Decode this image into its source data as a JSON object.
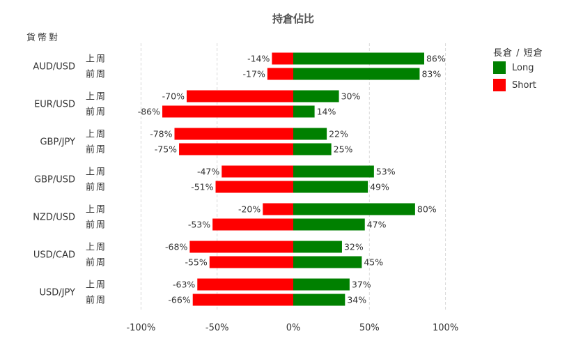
{
  "chart_data": {
    "type": "bar",
    "orientation": "horizontal-diverging",
    "title": "持倉佔比",
    "y_group_title": "貨幣對",
    "legend_title": "長倉 / 短倉",
    "legend_position": "right",
    "grid": true,
    "xlim": [
      -100,
      100
    ],
    "x_ticks": [
      {
        "value": -100,
        "label": "-100%"
      },
      {
        "value": -50,
        "label": "-50%"
      },
      {
        "value": 0,
        "label": "0%"
      },
      {
        "value": 50,
        "label": "50%"
      },
      {
        "value": 100,
        "label": "100%"
      }
    ],
    "period_labels": [
      "上周",
      "前周"
    ],
    "series": [
      {
        "name": "Long",
        "color": "#008000"
      },
      {
        "name": "Short",
        "color": "#ff0000"
      }
    ],
    "groups": [
      {
        "pair": "AUD/USD",
        "rows": [
          {
            "period": "上周",
            "long": 86,
            "short": -14,
            "long_label": "86%",
            "short_label": "-14%"
          },
          {
            "period": "前周",
            "long": 83,
            "short": -17,
            "long_label": "83%",
            "short_label": "-17%"
          }
        ]
      },
      {
        "pair": "EUR/USD",
        "rows": [
          {
            "period": "上周",
            "long": 30,
            "short": -70,
            "long_label": "30%",
            "short_label": "-70%"
          },
          {
            "period": "前周",
            "long": 14,
            "short": -86,
            "long_label": "14%",
            "short_label": "-86%"
          }
        ]
      },
      {
        "pair": "GBP/JPY",
        "rows": [
          {
            "period": "上周",
            "long": 22,
            "short": -78,
            "long_label": "22%",
            "short_label": "-78%"
          },
          {
            "period": "前周",
            "long": 25,
            "short": -75,
            "long_label": "25%",
            "short_label": "-75%"
          }
        ]
      },
      {
        "pair": "GBP/USD",
        "rows": [
          {
            "period": "上周",
            "long": 53,
            "short": -47,
            "long_label": "53%",
            "short_label": "-47%"
          },
          {
            "period": "前周",
            "long": 49,
            "short": -51,
            "long_label": "49%",
            "short_label": "-51%"
          }
        ]
      },
      {
        "pair": "NZD/USD",
        "rows": [
          {
            "period": "上周",
            "long": 80,
            "short": -20,
            "long_label": "80%",
            "short_label": "-20%"
          },
          {
            "period": "前周",
            "long": 47,
            "short": -53,
            "long_label": "47%",
            "short_label": "-53%"
          }
        ]
      },
      {
        "pair": "USD/CAD",
        "rows": [
          {
            "period": "上周",
            "long": 32,
            "short": -68,
            "long_label": "32%",
            "short_label": "-68%"
          },
          {
            "period": "前周",
            "long": 45,
            "short": -55,
            "long_label": "45%",
            "short_label": "-55%"
          }
        ]
      },
      {
        "pair": "USD/JPY",
        "rows": [
          {
            "period": "上周",
            "long": 37,
            "short": -63,
            "long_label": "37%",
            "short_label": "-63%"
          },
          {
            "period": "前周",
            "long": 34,
            "short": -66,
            "long_label": "34%",
            "short_label": "-66%"
          }
        ]
      }
    ]
  }
}
